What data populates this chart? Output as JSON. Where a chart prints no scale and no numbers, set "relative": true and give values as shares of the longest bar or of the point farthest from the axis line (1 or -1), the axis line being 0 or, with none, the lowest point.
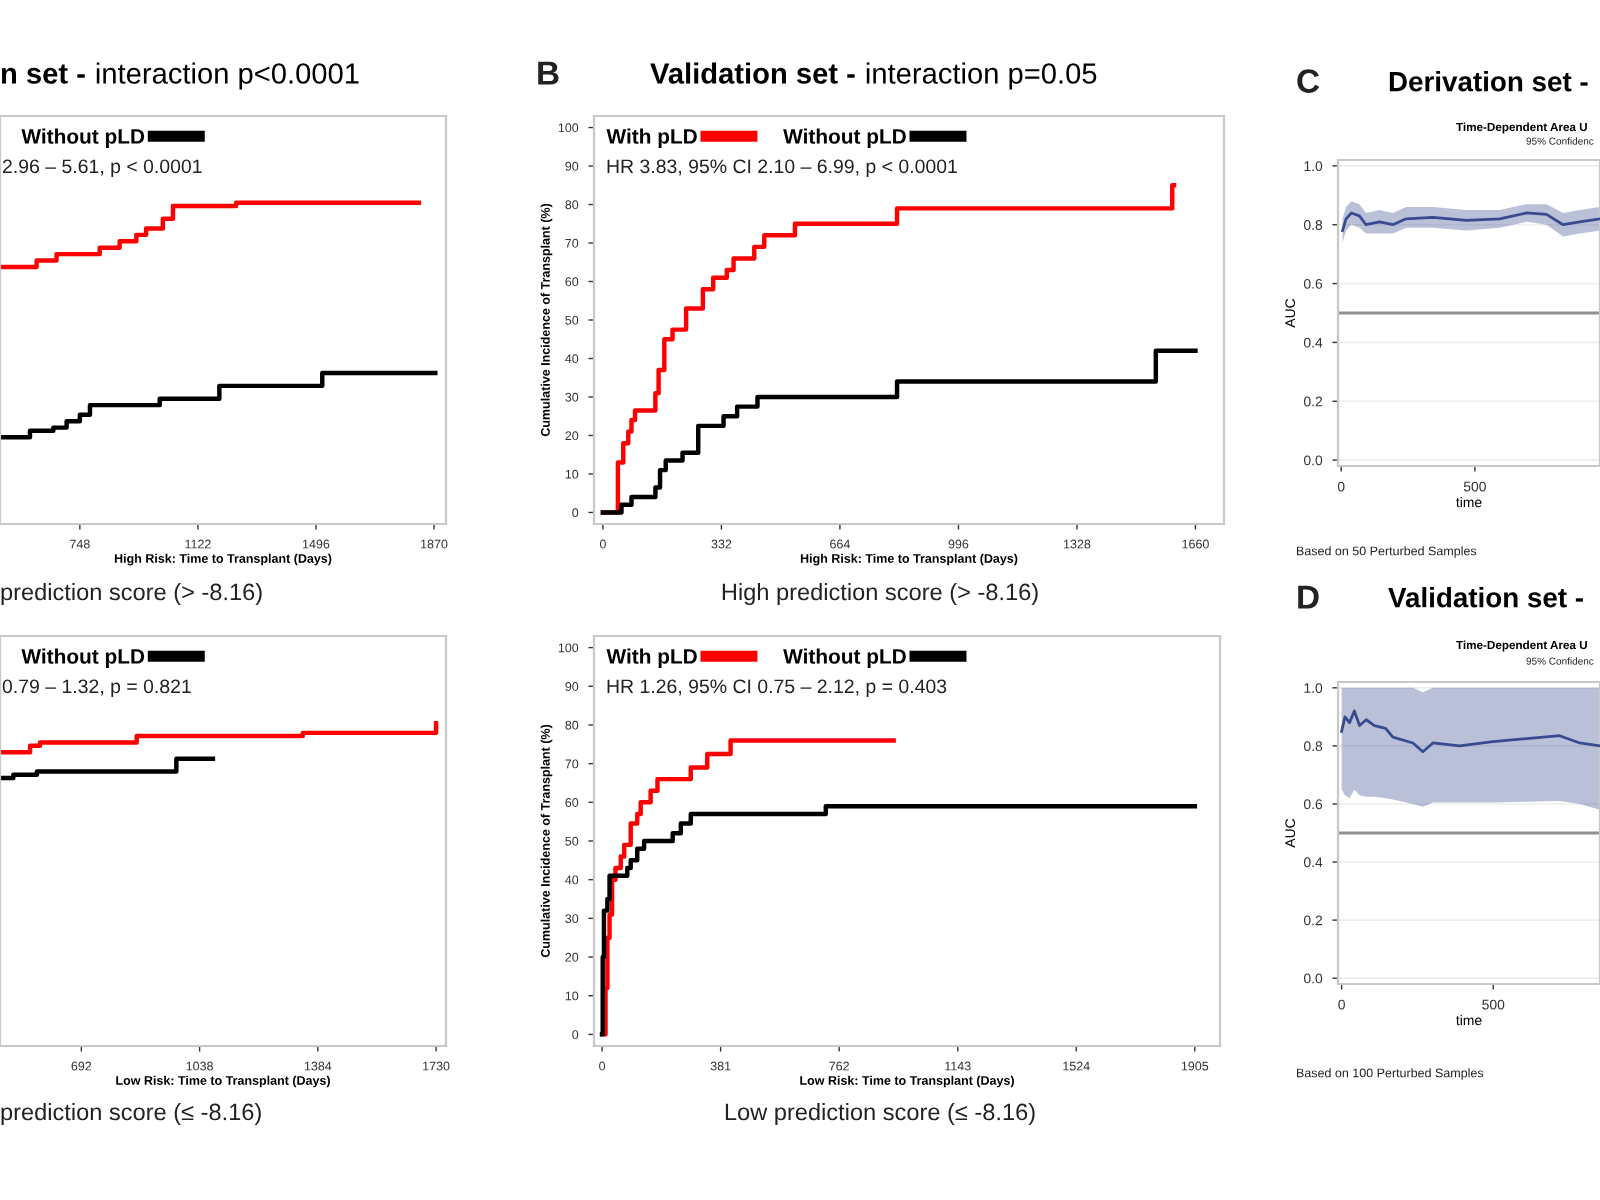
{
  "chart_data": [
    {
      "type": "step",
      "title": "n set - interaction p<0.0001",
      "xlabel": "High Risk: Time to Transplant (Days)",
      "relative": true,
      "xlim": [
        495,
        1908
      ],
      "xticks": [
        748,
        1122,
        1496,
        1870
      ],
      "tick_labels": "x",
      "legend": "top left",
      "grid": false,
      "marker": "none",
      "line_style": "solid",
      "annotations": [
        "2.96 – 5.61, p < 0.0001",
        "prediction score (> -8.16)"
      ],
      "series": [
        {
          "color": "#ff0000",
          "x": [
            495,
            611,
            674,
            748,
            811,
            874,
            927,
            958,
            1011,
            1043,
            1243,
            1822
          ],
          "values": [
            0.8,
            0.82,
            0.84,
            0.84,
            0.86,
            0.88,
            0.9,
            0.92,
            0.95,
            0.99,
            1.0,
            1.0
          ]
        },
        {
          "name": "Without pLD",
          "color": "#000000",
          "x": [
            495,
            590,
            664,
            706,
            748,
            780,
            1001,
            1190,
            1516,
            1874
          ],
          "values": [
            0.27,
            0.29,
            0.3,
            0.32,
            0.34,
            0.37,
            0.39,
            0.43,
            0.47,
            0.47
          ]
        }
      ]
    },
    {
      "type": "step",
      "title": "Validation set - interaction p=0.05",
      "xlabel": "High Risk: Time to Transplant (Days)",
      "ylabel": "Cumulative Incidence of Transplant (%)",
      "xlim": [
        -25,
        1740
      ],
      "ylim": [
        -3,
        103
      ],
      "xticks": [
        0,
        332,
        664,
        996,
        1328,
        1660
      ],
      "yticks": [
        0,
        10,
        20,
        30,
        40,
        50,
        60,
        70,
        80,
        90,
        100
      ],
      "legend": "top left",
      "grid": false,
      "marker": "none",
      "line_style": "solid",
      "annotations": [
        "B",
        "HR 3.83, 95% CI 2.10 – 6.99, p < 0.0001",
        "High prediction score (> -8.16)"
      ],
      "series": [
        {
          "name": "With pLD",
          "color": "#ff0000",
          "x": [
            0,
            42,
            57,
            71,
            80,
            90,
            147,
            156,
            172,
            195,
            233,
            280,
            309,
            347,
            366,
            424,
            452,
            538,
            824,
            1595,
            1600
          ],
          "values": [
            0,
            13,
            18,
            21,
            24,
            26.5,
            31,
            37,
            45,
            47.5,
            53,
            58,
            61,
            63,
            66,
            69,
            72,
            75,
            79,
            85,
            85
          ]
        },
        {
          "name": "Without pLD",
          "color": "#000000",
          "x": [
            0,
            52,
            80,
            147,
            160,
            176,
            223,
            267,
            338,
            376,
            433,
            824,
            1549,
            1660
          ],
          "values": [
            0,
            2,
            4,
            6.5,
            11,
            13.5,
            15.5,
            22.5,
            25,
            27.5,
            30,
            34,
            42,
            42
          ]
        }
      ]
    },
    {
      "type": "line",
      "title": "Derivation set -",
      "subtitle": "Time-Dependent Area U",
      "xlabel": "time",
      "ylabel": "AUC",
      "xlim": [
        -12,
        968
      ],
      "ylim": [
        -0.02,
        1.02
      ],
      "xticks": [
        0,
        500
      ],
      "yticks": [
        {
          "value": 0,
          "label": "0.0"
        },
        {
          "value": 0.2,
          "label": "0.2"
        },
        {
          "value": 0.4,
          "label": "0.4"
        },
        {
          "value": 0.6,
          "label": "0.6"
        },
        {
          "value": 0.8,
          "label": "0.8"
        },
        {
          "value": 1,
          "label": "1.0"
        }
      ],
      "grid": "y",
      "marker": "none",
      "line_style": "solid",
      "ref_lines": [
        {
          "axis": "y",
          "value": 0.5,
          "color": "#909090"
        }
      ],
      "annotations": [
        "C",
        "95% Confidenc",
        "Based on 50 Perturbed Samples"
      ],
      "series": [
        {
          "color": "#3a4a90",
          "x": [
            5,
            18,
            38,
            68,
            93,
            143,
            193,
            243,
            343,
            468,
            593,
            693,
            768,
            830,
            893,
            968
          ],
          "values": [
            0.78,
            0.82,
            0.84,
            0.83,
            0.8,
            0.81,
            0.8,
            0.82,
            0.825,
            0.815,
            0.82,
            0.84,
            0.835,
            0.8,
            0.81,
            0.82
          ],
          "lower": [
            0.74,
            0.78,
            0.8,
            0.79,
            0.77,
            0.77,
            0.77,
            0.79,
            0.79,
            0.78,
            0.79,
            0.81,
            0.8,
            0.76,
            0.77,
            0.78
          ],
          "upper": [
            0.82,
            0.86,
            0.88,
            0.87,
            0.84,
            0.85,
            0.84,
            0.86,
            0.86,
            0.85,
            0.85,
            0.87,
            0.87,
            0.84,
            0.85,
            0.86
          ]
        }
      ]
    },
    {
      "type": "step",
      "xlabel": "Low Risk: Time to Transplant (Days)",
      "relative": true,
      "xlim": [
        454,
        1759
      ],
      "xticks": [
        692,
        1038,
        1384,
        1730
      ],
      "tick_labels": "x",
      "legend": "top left",
      "grid": false,
      "marker": "none",
      "line_style": "solid",
      "annotations": [
        "0.79 – 1.32, p = 0.821",
        "prediction score (≤ -8.16)"
      ],
      "series": [
        {
          "color": "#ff0000",
          "x": [
            454,
            542,
            571,
            854,
            1340,
            1730
          ],
          "values": [
            0.91,
            0.93,
            0.94,
            0.96,
            0.97,
            1.0
          ]
        },
        {
          "name": "Without pLD",
          "color": "#000000",
          "x": [
            454,
            493,
            562,
            970,
            1077
          ],
          "values": [
            0.83,
            0.84,
            0.85,
            0.89,
            0.89
          ]
        }
      ]
    },
    {
      "type": "step",
      "xlabel": "Low Risk: Time to Transplant (Days)",
      "ylabel": "Cumulative Incidence of Transplant (%)",
      "xlim": [
        -26,
        1986
      ],
      "ylim": [
        -3,
        103
      ],
      "xticks": [
        0,
        381,
        762,
        1143,
        1524,
        1905
      ],
      "yticks": [
        0,
        10,
        20,
        30,
        40,
        50,
        60,
        70,
        80,
        90,
        100
      ],
      "legend": "top left",
      "grid": false,
      "marker": "none",
      "line_style": "solid",
      "annotations": [
        "HR 1.26, 95% CI 0.75 – 2.12, p = 0.403",
        "Low prediction score (≤ -8.16)"
      ],
      "series": [
        {
          "name": "With pLD",
          "color": "#ff0000",
          "x": [
            0,
            6,
            11,
            17,
            24,
            32,
            43,
            60,
            71,
            92,
            113,
            124,
            156,
            178,
            285,
            338,
            413,
            937
          ],
          "values": [
            0,
            0,
            12,
            25,
            31,
            40,
            43,
            46,
            49,
            54.5,
            57,
            60,
            63,
            66,
            69,
            72.5,
            76,
            76
          ]
        },
        {
          "name": "Without pLD",
          "color": "#000000",
          "x": [
            0,
            2,
            6,
            17,
            24,
            81,
            92,
            113,
            135,
            227,
            253,
            285,
            719,
            1905
          ],
          "values": [
            0,
            20,
            32,
            35,
            41,
            43,
            45,
            48,
            50,
            52,
            54.5,
            57,
            59,
            59
          ]
        }
      ]
    },
    {
      "type": "line",
      "title": "Validation set -",
      "subtitle": "Time-Dependent Area U",
      "xlabel": "time",
      "ylabel": "AUC",
      "xlim": [
        -12,
        852
      ],
      "ylim": [
        -0.02,
        1.02
      ],
      "xticks": [
        0,
        500
      ],
      "yticks": [
        {
          "value": 0,
          "label": "0.0"
        },
        {
          "value": 0.2,
          "label": "0.2"
        },
        {
          "value": 0.4,
          "label": "0.4"
        },
        {
          "value": 0.6,
          "label": "0.6"
        },
        {
          "value": 0.8,
          "label": "0.8"
        },
        {
          "value": 1,
          "label": "1.0"
        }
      ],
      "grid": "y",
      "marker": "none",
      "line_style": "solid",
      "ref_lines": [
        {
          "axis": "y",
          "value": 0.5,
          "color": "#909090"
        }
      ],
      "annotations": [
        "D",
        "95% Confidenc",
        "Based on 100 Perturbed Samples"
      ],
      "series": [
        {
          "color": "#3a4a90",
          "x": [
            0,
            11,
            26,
            42,
            59,
            81,
            108,
            145,
            169,
            235,
            268,
            301,
            389,
            499,
            719,
            785,
            852
          ],
          "values": [
            0.85,
            0.9,
            0.88,
            0.92,
            0.87,
            0.89,
            0.87,
            0.86,
            0.83,
            0.81,
            0.78,
            0.81,
            0.8,
            0.815,
            0.835,
            0.81,
            0.8
          ],
          "lower": [
            0.65,
            0.63,
            0.62,
            0.65,
            0.63,
            0.625,
            0.625,
            0.62,
            0.615,
            0.6,
            0.59,
            0.605,
            0.605,
            0.605,
            0.61,
            0.6,
            0.58
          ],
          "upper": [
            1.0,
            1.0,
            1.0,
            1.0,
            1.0,
            1.0,
            1.0,
            1.0,
            1.0,
            1.0,
            0.985,
            1.0,
            1.0,
            1.0,
            1.0,
            1.0,
            1.0
          ]
        }
      ]
    }
  ]
}
